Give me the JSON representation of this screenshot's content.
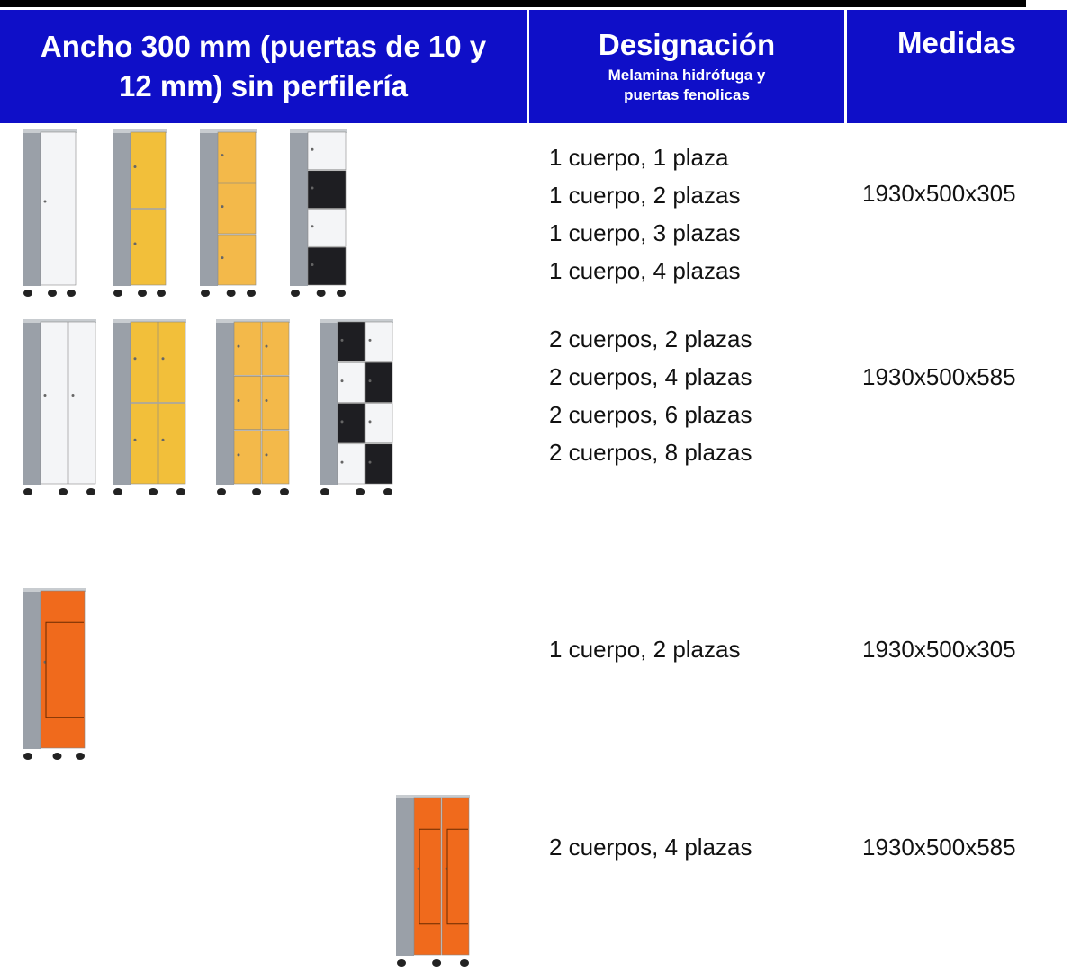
{
  "header": {
    "col1": "Ancho 300 mm (puertas de 10 y 12 mm) sin perfilería",
    "col2_title": "Designación",
    "col2_subtitle": "Melamina hidrófuga y puertas fenolicas",
    "col3": "Medidas"
  },
  "rows": [
    {
      "designations": [
        "1 cuerpo, 1 plaza",
        "1 cuerpo, 2 plazas",
        "1 cuerpo, 3 plazas",
        "1 cuerpo, 4 plazas"
      ],
      "medidas": "1930x500x305"
    },
    {
      "designations": [
        "2 cuerpos, 2 plazas",
        "2 cuerpos, 4 plazas",
        "2 cuerpos, 6 plazas",
        "2 cuerpos, 8 plazas"
      ],
      "medidas": "1930x500x585"
    },
    {
      "designations": [
        "1 cuerpo, 2 plazas"
      ],
      "medidas": "1930x500x305"
    },
    {
      "designations": [
        "2 cuerpos, 4 plazas"
      ],
      "medidas": "1930x500x585"
    }
  ]
}
